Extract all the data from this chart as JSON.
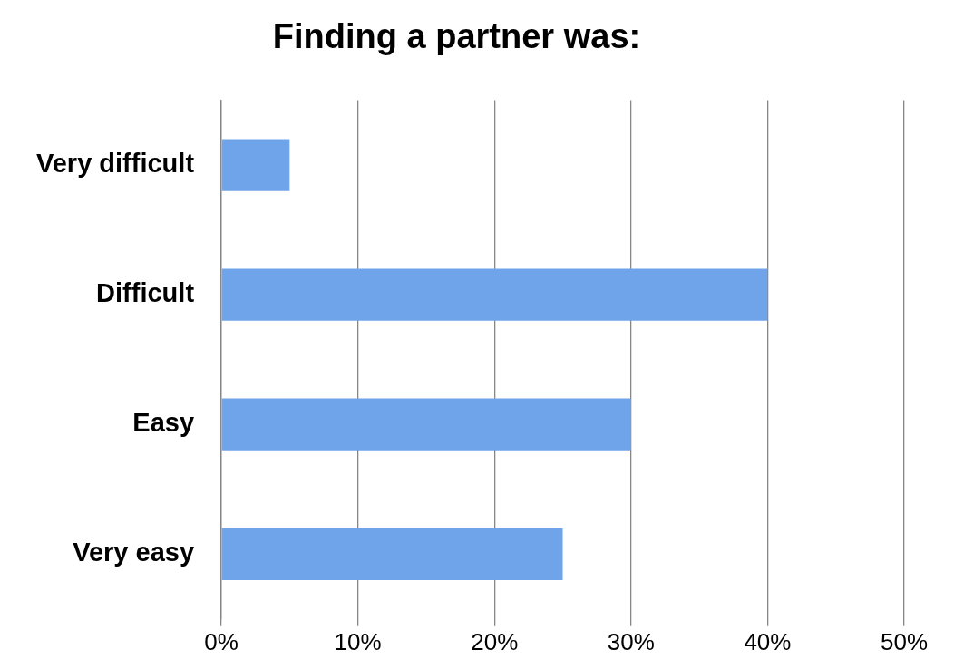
{
  "chart_data": {
    "type": "bar",
    "orientation": "horizontal",
    "title": "Finding a partner was:",
    "categories": [
      "Very difficult",
      "Difficult",
      "Easy",
      "Very easy"
    ],
    "values": [
      5,
      40,
      30,
      25
    ],
    "color": "#6fa3ea",
    "xlim": [
      0,
      50
    ],
    "xticks": [
      {
        "value": 0,
        "label": "0%"
      },
      {
        "value": 10,
        "label": "10%"
      },
      {
        "value": 20,
        "label": "20%"
      },
      {
        "value": 30,
        "label": "30%"
      },
      {
        "value": 40,
        "label": "40%"
      },
      {
        "value": 50,
        "label": "50%"
      }
    ],
    "grid": "x"
  }
}
